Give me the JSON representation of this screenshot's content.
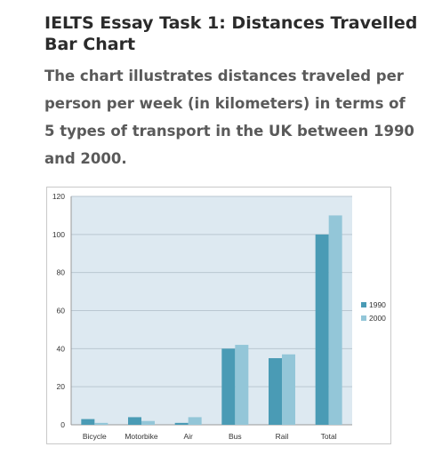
{
  "header": {
    "title": "IELTS Essay Task 1: Distances Travelled Bar Chart",
    "description": "The chart illustrates distances traveled per person per week (in kilometers) in terms of 5 types of transport in the UK between 1990 and 2000."
  },
  "chart_data": {
    "type": "bar",
    "categories": [
      "Bicycle",
      "Motorbike",
      "Air",
      "Bus",
      "Rail",
      "Total"
    ],
    "series": [
      {
        "name": "1990",
        "values": [
          3,
          4,
          1,
          40,
          35,
          100
        ],
        "color": "#4a9bb5"
      },
      {
        "name": "2000",
        "values": [
          1,
          2,
          4,
          42,
          37,
          110
        ],
        "color": "#93c6d8"
      }
    ],
    "ylim": [
      0,
      120
    ],
    "yticks": [
      0,
      20,
      40,
      60,
      80,
      100,
      120
    ],
    "grid": true,
    "legend": "right",
    "plot_background": "#dde9f1"
  }
}
